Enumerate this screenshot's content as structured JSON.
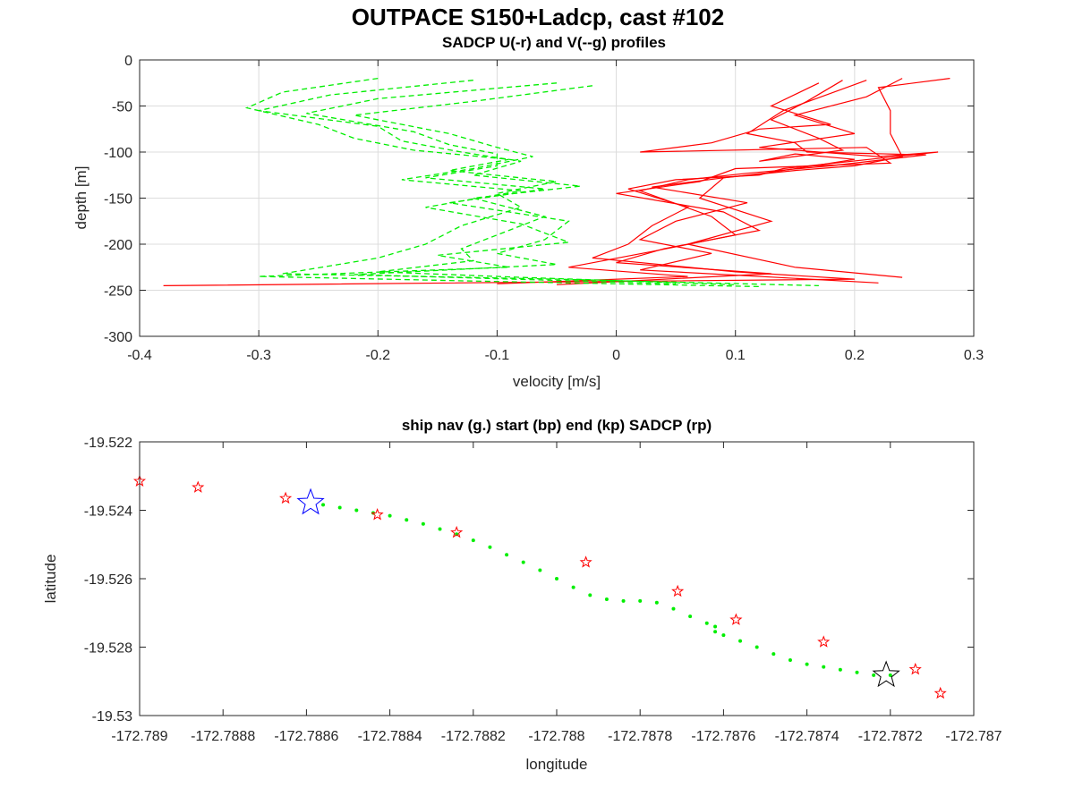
{
  "figure": {
    "title": "OUTPACE S150+Ladcp, cast #102"
  },
  "chart_data": [
    {
      "type": "line",
      "title": "SADCP U(-r) and V(--g) profiles",
      "xlabel": "velocity [m/s]",
      "ylabel": "depth [m]",
      "xlim": [
        -0.4,
        0.3
      ],
      "ylim": [
        -300,
        0
      ],
      "xticks": [
        -0.4,
        -0.3,
        -0.2,
        -0.1,
        0,
        0.1,
        0.2,
        0.3
      ],
      "yticks": [
        0,
        -50,
        -100,
        -150,
        -200,
        -250,
        -300
      ],
      "xtick_labels": [
        "-0.4",
        "-0.3",
        "-0.2",
        "-0.1",
        "0",
        "0.1",
        "0.2",
        "0.3"
      ],
      "ytick_labels": [
        "0",
        "-50",
        "-100",
        "-150",
        "-200",
        "-250",
        "-300"
      ],
      "grid": true,
      "colors": {
        "U": "#ff0000",
        "V": "#00ee00"
      },
      "series": [
        {
          "component": "U",
          "style": "solid",
          "x": [
            0.24,
            0.21,
            0.15,
            0.2,
            0.12,
            0.22,
            0.27,
            0.14,
            0.12,
            0.05,
            0.01,
            0.06,
            0.03,
            0.01,
            -0.02,
            0.1,
            0.2,
            -0.38
          ],
          "y": [
            -20,
            -40,
            -60,
            -80,
            -95,
            -105,
            -100,
            -118,
            -125,
            -130,
            -140,
            -160,
            -180,
            -200,
            -215,
            -230,
            -238,
            -245
          ]
        },
        {
          "component": "U",
          "style": "solid",
          "x": [
            0.19,
            0.16,
            0.13,
            0.17,
            0.19,
            0.12,
            0.15,
            0.2,
            0.13,
            0.09,
            0.03,
            0.11,
            0.05,
            0.02,
            0.08,
            0.02,
            0.22
          ],
          "y": [
            -22,
            -45,
            -65,
            -85,
            -98,
            -110,
            -102,
            -108,
            -122,
            -128,
            -138,
            -155,
            -175,
            -195,
            -210,
            -228,
            -242
          ]
        },
        {
          "component": "U",
          "style": "solid",
          "x": [
            0.17,
            0.13,
            0.18,
            0.12,
            0.08,
            0.02,
            0.21,
            0.23,
            0.1,
            0.07,
            0.0,
            0.09,
            0.12,
            0.04,
            0.0,
            0.13,
            -0.05
          ],
          "y": [
            -25,
            -50,
            -70,
            -75,
            -90,
            -100,
            -95,
            -112,
            -118,
            -132,
            -145,
            -165,
            -185,
            -205,
            -220,
            -232,
            -244
          ]
        },
        {
          "component": "U",
          "style": "solid",
          "x": [
            0.21,
            0.14,
            0.11,
            0.15,
            0.16,
            0.26,
            0.18,
            0.11,
            0.06,
            0.02,
            0.08,
            0.1,
            0.03,
            -0.04,
            0.06,
            -0.1
          ],
          "y": [
            -22,
            -55,
            -80,
            -90,
            -100,
            -103,
            -115,
            -123,
            -130,
            -142,
            -170,
            -190,
            -208,
            -225,
            -235,
            -243
          ]
        },
        {
          "component": "U",
          "style": "solid",
          "x": [
            0.28,
            0.22,
            0.23,
            0.23,
            0.24,
            0.2,
            0.15,
            0.09,
            0.07,
            0.13,
            0.06,
            0.15,
            0.24
          ],
          "y": [
            -20,
            -30,
            -55,
            -80,
            -105,
            -115,
            -120,
            -128,
            -150,
            -175,
            -200,
            -225,
            -236
          ]
        }
      ]
    },
    {
      "type": "scatter",
      "title": "ship nav (g.) start (bp) end (kp) SADCP (rp)",
      "xlabel": "longitude",
      "ylabel": "latitude",
      "xlim": [
        -172.789,
        -172.787
      ],
      "ylim": [
        -19.53,
        -19.522
      ],
      "xticks": [
        -172.789,
        -172.7888,
        -172.7886,
        -172.7884,
        -172.7882,
        -172.788,
        -172.7878,
        -172.7876,
        -172.7874,
        -172.7872,
        -172.787
      ],
      "yticks": [
        -19.522,
        -19.524,
        -19.526,
        -19.528,
        -19.53
      ],
      "xtick_labels": [
        "-172.789",
        "-172.7888",
        "-172.7886",
        "-172.7884",
        "-172.7882",
        "-172.788",
        "-172.7878",
        "-172.7876",
        "-172.7874",
        "-172.7872",
        "-172.787"
      ],
      "ytick_labels": [
        "-19.522",
        "-19.524",
        "-19.526",
        "-19.528",
        "-19.53"
      ],
      "grid": false,
      "colors": {
        "nav": "#00ee00",
        "start": "#0000ff",
        "end": "#000000",
        "sadcp": "#ff0000"
      },
      "nav": {
        "x": [
          -172.78856,
          -172.78852,
          -172.78848,
          -172.78844,
          -172.7884,
          -172.78836,
          -172.78832,
          -172.78828,
          -172.78824,
          -172.7882,
          -172.78816,
          -172.78812,
          -172.78808,
          -172.78804,
          -172.788,
          -172.78796,
          -172.78792,
          -172.78788,
          -172.78784,
          -172.7878,
          -172.78776,
          -172.78772,
          -172.78768,
          -172.78764,
          -172.78762,
          -172.78762,
          -172.7876,
          -172.78756,
          -172.78752,
          -172.78748,
          -172.78744,
          -172.7874,
          -172.78736,
          -172.78732,
          -172.78728,
          -172.78724,
          -172.7872
        ],
        "y": [
          -19.52384,
          -19.52392,
          -19.524,
          -19.52408,
          -19.52416,
          -19.52428,
          -19.5244,
          -19.52455,
          -19.5247,
          -19.52488,
          -19.52508,
          -19.5253,
          -19.52552,
          -19.52575,
          -19.526,
          -19.52625,
          -19.52648,
          -19.5266,
          -19.52665,
          -19.52665,
          -19.5267,
          -19.52688,
          -19.5271,
          -19.5273,
          -19.5274,
          -19.52755,
          -19.52765,
          -19.52782,
          -19.528,
          -19.5282,
          -19.52838,
          -19.5285,
          -19.52858,
          -19.52866,
          -19.52874,
          -19.52882,
          -19.52882
        ]
      },
      "start": {
        "x": -172.78859,
        "y": -19.52378
      },
      "end": {
        "x": -172.78721,
        "y": -19.52882
      },
      "sadcp": {
        "x": [
          -172.789,
          -172.78886,
          -172.78865,
          -172.78843,
          -172.78824,
          -172.78793,
          -172.78771,
          -172.78757,
          -172.78736,
          -172.78714,
          -172.78708
        ],
        "y": [
          -19.52315,
          -19.52333,
          -19.52365,
          -19.52413,
          -19.52465,
          -19.52552,
          -19.52637,
          -19.5272,
          -19.52785,
          -19.52865,
          -19.52935
        ]
      }
    }
  ]
}
